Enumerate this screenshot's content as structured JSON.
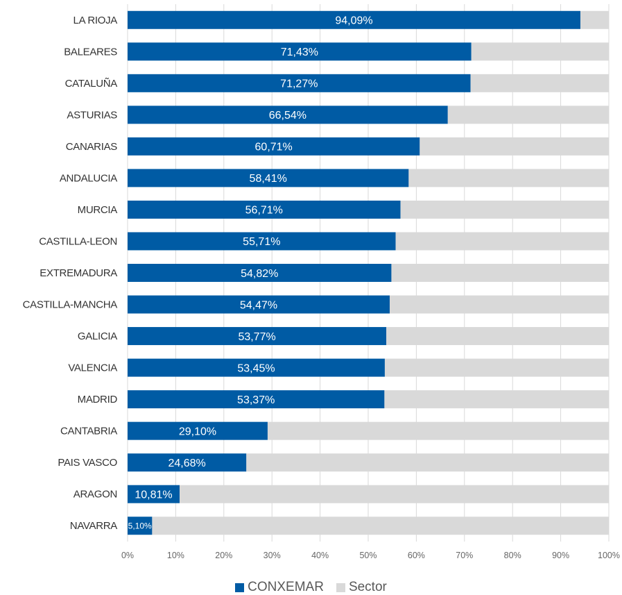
{
  "chart_data": {
    "type": "bar",
    "orientation": "horizontal",
    "stacked": true,
    "categories": [
      "LA RIOJA",
      "BALEARES",
      "CATALUÑA",
      "ASTURIAS",
      "CANARIAS",
      "ANDALUCIA",
      "MURCIA",
      "CASTILLA-LEON",
      "EXTREMADURA",
      "CASTILLA-MANCHA",
      "GALICIA",
      "VALENCIA",
      "MADRID",
      "CANTABRIA",
      "PAIS VASCO",
      "ARAGON",
      "NAVARRA"
    ],
    "series": [
      {
        "name": "CONXEMAR",
        "color": "#005ba4",
        "values": [
          94.09,
          71.43,
          71.27,
          66.54,
          60.71,
          58.41,
          56.71,
          55.71,
          54.82,
          54.47,
          53.77,
          53.45,
          53.37,
          29.1,
          24.68,
          10.81,
          5.1
        ],
        "labels": [
          "94,09%",
          "71,43%",
          "71,27%",
          "66,54%",
          "60,71%",
          "58,41%",
          "56,71%",
          "55,71%",
          "54,82%",
          "54,47%",
          "53,77%",
          "53,45%",
          "53,37%",
          "29,10%",
          "24,68%",
          "10,81%",
          "5,10%"
        ]
      },
      {
        "name": "Sector",
        "color": "#d9d9d9",
        "values": [
          5.91,
          28.57,
          28.73,
          33.46,
          39.29,
          41.59,
          43.29,
          44.29,
          45.18,
          45.53,
          46.23,
          46.55,
          46.63,
          70.9,
          75.32,
          89.19,
          94.9
        ]
      }
    ],
    "xlim": [
      0,
      100
    ],
    "x_ticks": [
      "0%",
      "10%",
      "20%",
      "30%",
      "40%",
      "50%",
      "60%",
      "70%",
      "80%",
      "90%",
      "100%"
    ],
    "grid": true,
    "legend_position": "bottom"
  }
}
